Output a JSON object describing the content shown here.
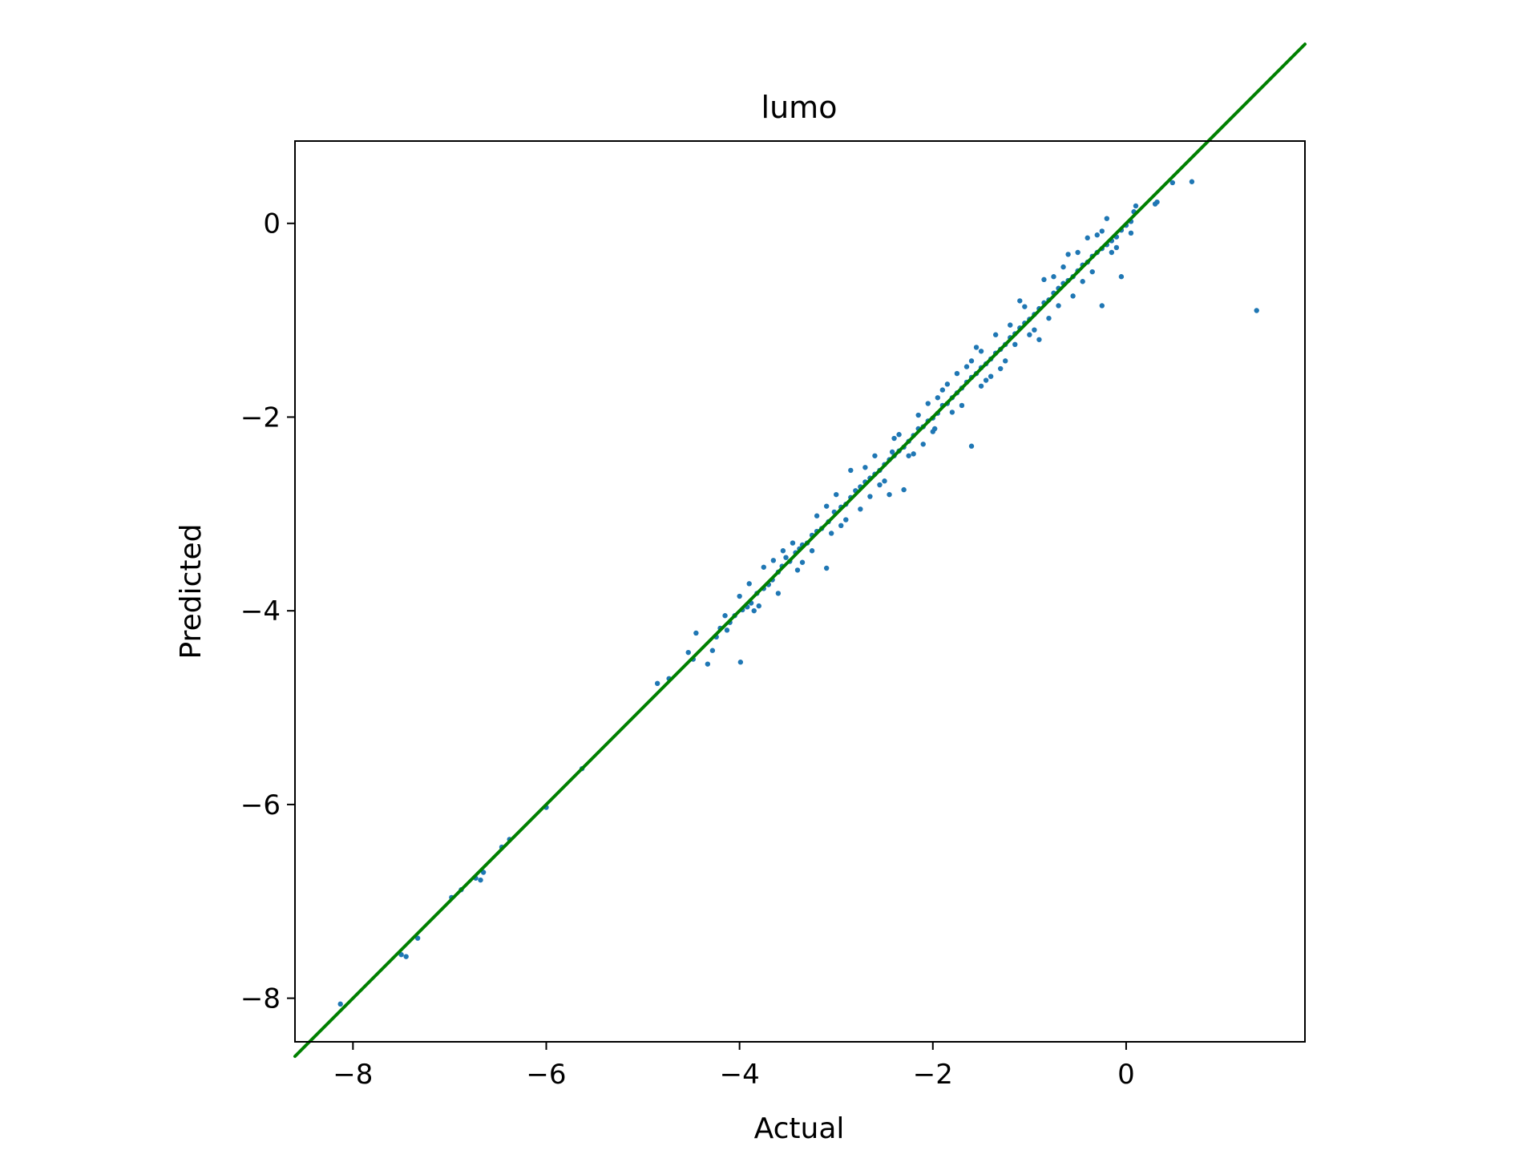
{
  "chart_data": {
    "type": "scatter",
    "title": "lumo",
    "xlabel": "Actual",
    "ylabel": "Predicted",
    "xlim": [
      -8.6,
      1.85
    ],
    "ylim": [
      -8.45,
      0.85
    ],
    "x_ticks": [
      -8,
      -6,
      -4,
      -2,
      0
    ],
    "y_ticks": [
      -8,
      -6,
      -4,
      -2,
      0
    ],
    "x_tick_labels": [
      "−8",
      "−6",
      "−4",
      "−2",
      "0"
    ],
    "y_tick_labels": [
      "−8",
      "−6",
      "−4",
      "−2",
      "0"
    ],
    "grid": false,
    "legend": "none",
    "colors": {
      "points": "#1f77b4",
      "reference_line": "#008000",
      "axes": "#000000"
    },
    "reference_line": {
      "label": "y = x",
      "from": [
        -8.6,
        -8.6
      ],
      "to": [
        1.85,
        1.85
      ]
    },
    "series": [
      {
        "points": [
          [
            -8.13,
            -8.06
          ],
          [
            -7.5,
            -7.55
          ],
          [
            -7.45,
            -7.57
          ],
          [
            -7.33,
            -7.38
          ],
          [
            -6.98,
            -6.96
          ],
          [
            -6.88,
            -6.88
          ],
          [
            -6.73,
            -6.76
          ],
          [
            -6.68,
            -6.78
          ],
          [
            -6.65,
            -6.7
          ],
          [
            -6.46,
            -6.44
          ],
          [
            -6.38,
            -6.36
          ],
          [
            -6.0,
            -6.03
          ],
          [
            -5.63,
            -5.63
          ],
          [
            -4.85,
            -4.75
          ],
          [
            -4.73,
            -4.7
          ],
          [
            -4.53,
            -4.43
          ],
          [
            -4.48,
            -4.5
          ],
          [
            -4.45,
            -4.23
          ],
          [
            -4.33,
            -4.55
          ],
          [
            -4.28,
            -4.41
          ],
          [
            -4.24,
            -4.27
          ],
          [
            -4.2,
            -4.18
          ],
          [
            -4.13,
            -4.2
          ],
          [
            -4.1,
            -4.12
          ],
          [
            -4.05,
            -4.05
          ],
          [
            -3.99,
            -4.53
          ],
          [
            -3.97,
            -3.99
          ],
          [
            -3.92,
            -3.96
          ],
          [
            -3.88,
            -3.92
          ],
          [
            -3.82,
            -3.82
          ],
          [
            -3.75,
            -3.77
          ],
          [
            -3.7,
            -3.73
          ],
          [
            -3.66,
            -3.68
          ],
          [
            -3.6,
            -3.6
          ],
          [
            -3.56,
            -3.54
          ],
          [
            -3.52,
            -3.45
          ],
          [
            -3.48,
            -3.49
          ],
          [
            -3.42,
            -3.4
          ],
          [
            -3.38,
            -3.36
          ],
          [
            -3.35,
            -3.32
          ],
          [
            -3.3,
            -3.3
          ],
          [
            -3.25,
            -3.22
          ],
          [
            -3.2,
            -3.18
          ],
          [
            -3.1,
            -3.56
          ],
          [
            -3.15,
            -3.15
          ],
          [
            -3.08,
            -3.08
          ],
          [
            -3.02,
            -2.98
          ],
          [
            -2.95,
            -2.93
          ],
          [
            -2.9,
            -2.9
          ],
          [
            -2.85,
            -2.83
          ],
          [
            -2.8,
            -2.76
          ],
          [
            -2.75,
            -2.72
          ],
          [
            -2.7,
            -2.67
          ],
          [
            -2.65,
            -2.63
          ],
          [
            -2.6,
            -2.59
          ],
          [
            -2.55,
            -2.55
          ],
          [
            -2.5,
            -2.49
          ],
          [
            -2.45,
            -2.44
          ],
          [
            -2.42,
            -2.36
          ],
          [
            -2.4,
            -2.4
          ],
          [
            -2.35,
            -2.35
          ],
          [
            -2.3,
            -2.31
          ],
          [
            -2.25,
            -2.25
          ],
          [
            -2.2,
            -2.19
          ],
          [
            -2.15,
            -2.12
          ],
          [
            -2.1,
            -2.1
          ],
          [
            -2.05,
            -2.04
          ],
          [
            -2.0,
            -2.01
          ],
          [
            -1.95,
            -1.96
          ],
          [
            -1.9,
            -1.88
          ],
          [
            -1.85,
            -1.86
          ],
          [
            -1.8,
            -1.8
          ],
          [
            -1.75,
            -1.75
          ],
          [
            -1.7,
            -1.7
          ],
          [
            -1.65,
            -1.64
          ],
          [
            -1.6,
            -1.59
          ],
          [
            -1.55,
            -1.55
          ],
          [
            -1.5,
            -1.49
          ],
          [
            -1.45,
            -1.45
          ],
          [
            -1.4,
            -1.4
          ],
          [
            -1.35,
            -1.34
          ],
          [
            -1.3,
            -1.3
          ],
          [
            -1.25,
            -1.25
          ],
          [
            -1.2,
            -1.18
          ],
          [
            -1.15,
            -1.14
          ],
          [
            -1.1,
            -1.08
          ],
          [
            -1.05,
            -1.03
          ],
          [
            -1.0,
            -0.99
          ],
          [
            -0.95,
            -0.94
          ],
          [
            -0.9,
            -0.88
          ],
          [
            -0.85,
            -0.82
          ],
          [
            -0.8,
            -0.79
          ],
          [
            -0.75,
            -0.72
          ],
          [
            -0.7,
            -0.67
          ],
          [
            -0.65,
            -0.62
          ],
          [
            -0.6,
            -0.59
          ],
          [
            -0.55,
            -0.55
          ],
          [
            -0.5,
            -0.49
          ],
          [
            -0.45,
            -0.43
          ],
          [
            -0.4,
            -0.4
          ],
          [
            -0.35,
            -0.34
          ],
          [
            -0.3,
            -0.3
          ],
          [
            -0.25,
            -0.26
          ],
          [
            -0.2,
            -0.22
          ],
          [
            -0.15,
            -0.18
          ],
          [
            -0.1,
            -0.14
          ],
          [
            -0.05,
            -0.07
          ],
          [
            0.0,
            -0.02
          ],
          [
            0.05,
            0.02
          ],
          [
            0.08,
            0.12
          ],
          [
            0.3,
            0.2
          ],
          [
            0.32,
            0.22
          ],
          [
            0.48,
            0.42
          ],
          [
            0.68,
            0.43
          ],
          [
            1.35,
            -0.9
          ],
          [
            -1.6,
            -2.3
          ],
          [
            -1.98,
            -2.12
          ],
          [
            -2.3,
            -2.75
          ],
          [
            -2.45,
            -2.8
          ],
          [
            -1.15,
            -1.25
          ],
          [
            -0.9,
            -1.2
          ],
          [
            -0.25,
            -0.85
          ],
          [
            -0.05,
            -0.55
          ],
          [
            -3.45,
            -3.3
          ],
          [
            -3.25,
            -3.38
          ],
          [
            -2.75,
            -2.95
          ],
          [
            -2.55,
            -2.7
          ],
          [
            -2.85,
            -2.55
          ],
          [
            -2.6,
            -2.4
          ],
          [
            -2.15,
            -1.98
          ],
          [
            -1.85,
            -1.66
          ],
          [
            -1.55,
            -1.28
          ],
          [
            -1.1,
            -0.8
          ],
          [
            -0.85,
            -0.58
          ],
          [
            -0.6,
            -0.32
          ],
          [
            -0.4,
            -0.15
          ],
          [
            -0.2,
            0.05
          ],
          [
            -3.75,
            -3.55
          ],
          [
            -3.6,
            -3.82
          ],
          [
            -3.0,
            -2.8
          ],
          [
            -2.95,
            -3.12
          ],
          [
            -2.2,
            -2.38
          ],
          [
            -2.1,
            -2.28
          ],
          [
            -1.75,
            -1.55
          ],
          [
            -1.45,
            -1.62
          ],
          [
            -1.35,
            -1.15
          ],
          [
            -1.25,
            -1.42
          ],
          [
            -1.05,
            -0.86
          ],
          [
            -0.95,
            -1.1
          ],
          [
            -0.75,
            -0.55
          ],
          [
            -0.7,
            -0.85
          ],
          [
            -0.5,
            -0.3
          ],
          [
            -0.45,
            -0.6
          ],
          [
            -0.3,
            -0.12
          ],
          [
            -0.15,
            -0.3
          ],
          [
            0.05,
            -0.1
          ],
          [
            0.1,
            0.18
          ],
          [
            -1.9,
            -1.72
          ],
          [
            -1.7,
            -1.88
          ],
          [
            -1.5,
            -1.32
          ],
          [
            -1.3,
            -1.5
          ],
          [
            -1.0,
            -1.15
          ],
          [
            -0.8,
            -0.98
          ],
          [
            -0.65,
            -0.45
          ],
          [
            -0.55,
            -0.75
          ],
          [
            -2.05,
            -1.86
          ],
          [
            -2.35,
            -2.18
          ],
          [
            -2.5,
            -2.66
          ],
          [
            -2.7,
            -2.52
          ],
          [
            -2.9,
            -3.06
          ],
          [
            -3.1,
            -2.92
          ],
          [
            -3.35,
            -3.5
          ],
          [
            -3.55,
            -3.38
          ],
          [
            -3.8,
            -3.95
          ],
          [
            -3.9,
            -3.72
          ],
          [
            -4.0,
            -3.85
          ],
          [
            -2.0,
            -2.15
          ],
          [
            -1.8,
            -1.95
          ],
          [
            -1.6,
            -1.42
          ],
          [
            -1.4,
            -1.58
          ],
          [
            -1.2,
            -1.05
          ],
          [
            -0.35,
            -0.5
          ],
          [
            -0.1,
            -0.25
          ],
          [
            -0.25,
            -0.08
          ],
          [
            -1.65,
            -1.48
          ],
          [
            -1.5,
            -1.68
          ],
          [
            -1.95,
            -1.8
          ],
          [
            -2.25,
            -2.4
          ],
          [
            -2.4,
            -2.22
          ],
          [
            -2.65,
            -2.82
          ],
          [
            -3.05,
            -3.2
          ],
          [
            -3.2,
            -3.02
          ],
          [
            -3.4,
            -3.58
          ],
          [
            -3.65,
            -3.48
          ],
          [
            -3.85,
            -4.0
          ],
          [
            -4.15,
            -4.05
          ]
        ]
      }
    ]
  }
}
